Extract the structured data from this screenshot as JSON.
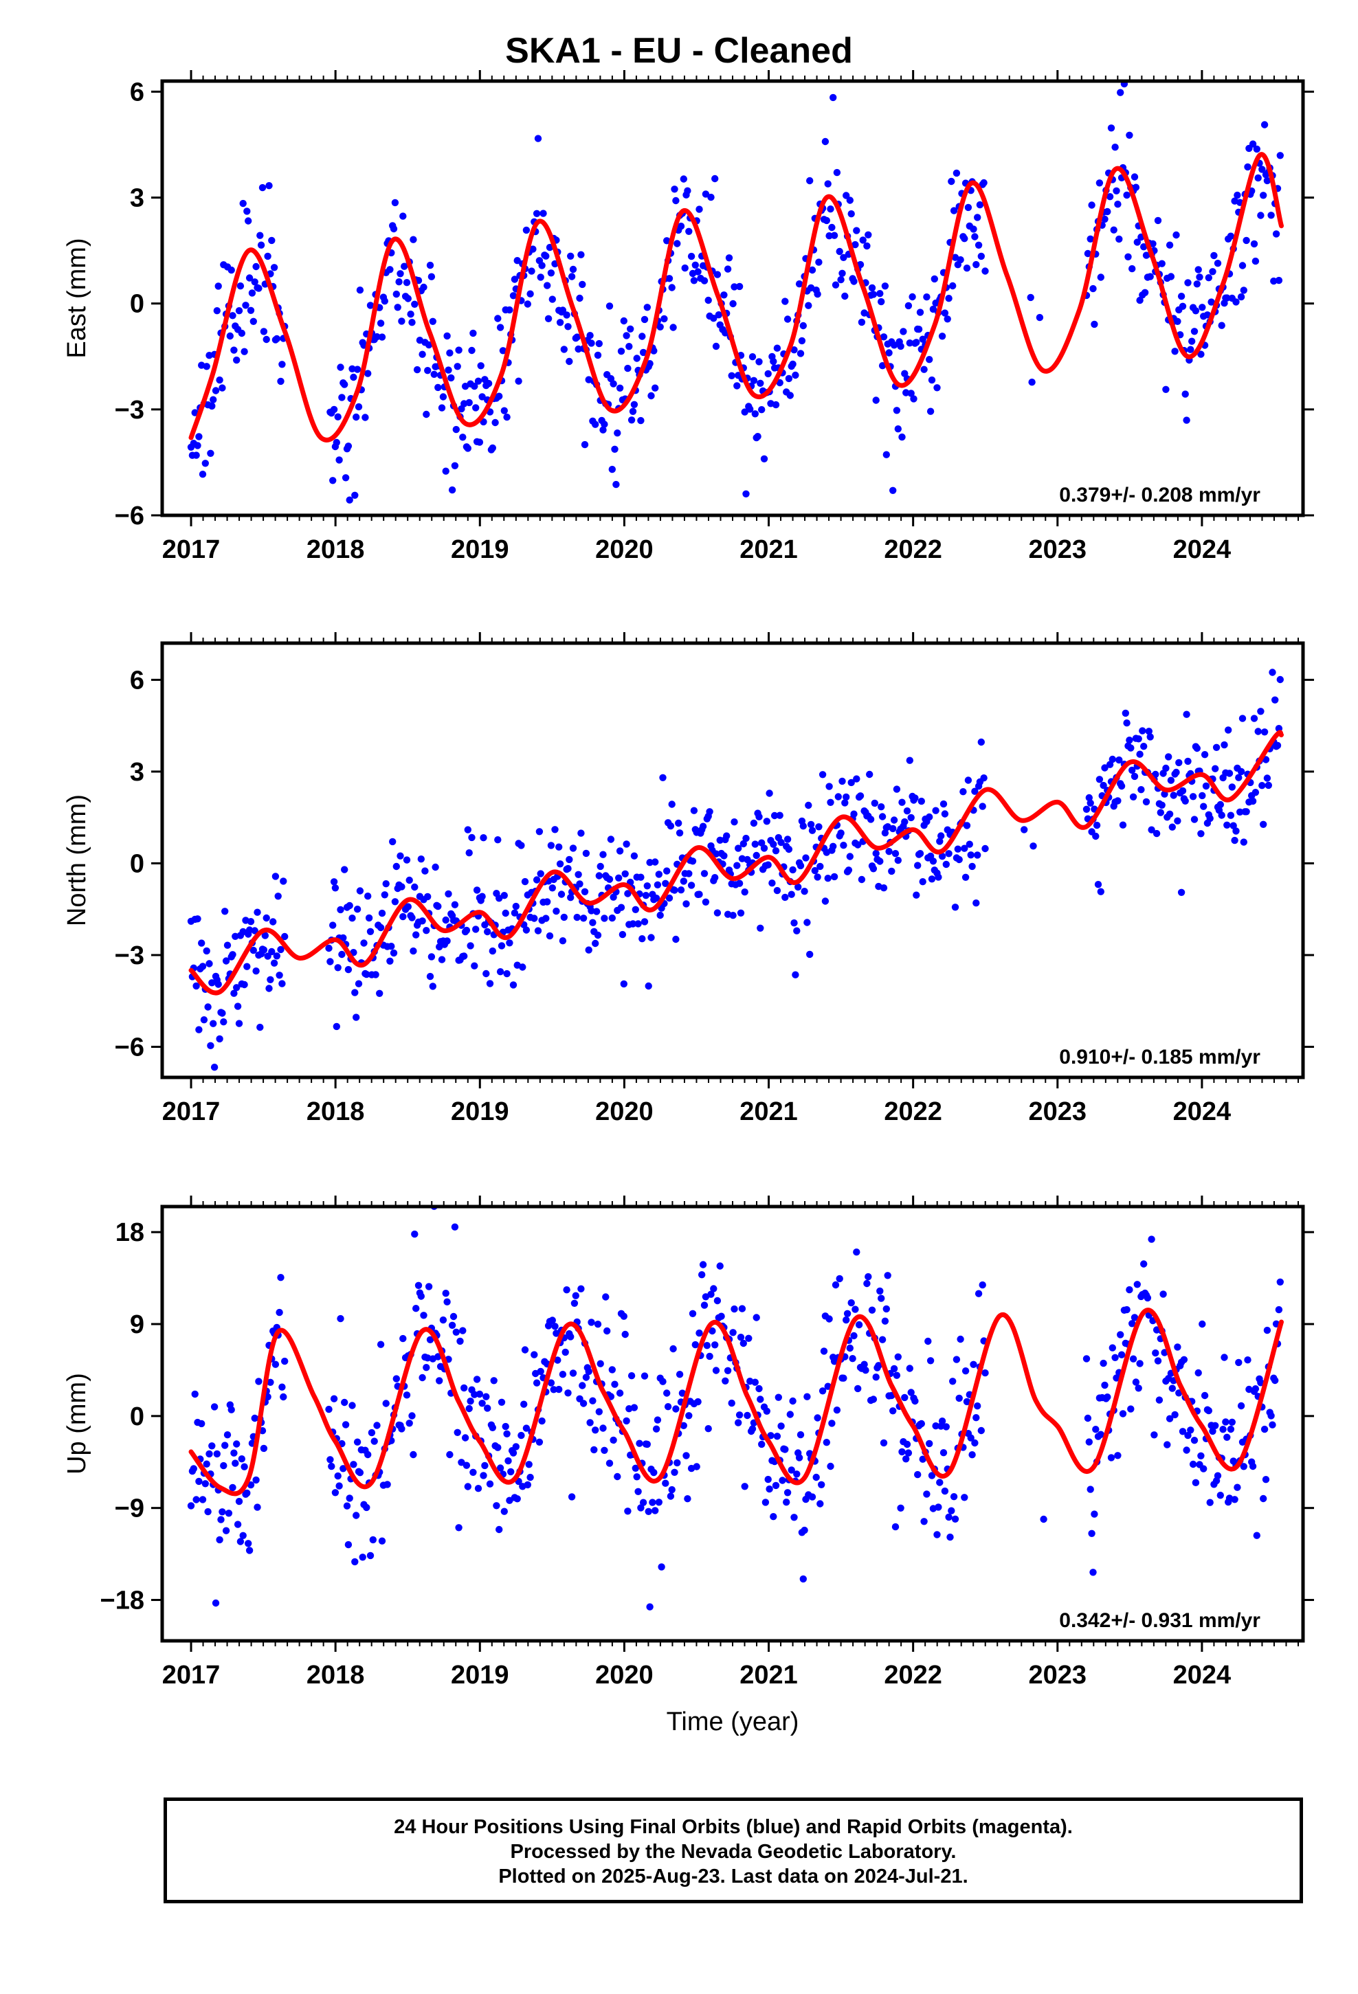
{
  "title": "SKA1  - EU - Cleaned",
  "caption": {
    "line1": "24 Hour Positions Using Final Orbits (blue) and Rapid Orbits (magenta).",
    "line2": "Processed by the Nevada Geodetic Laboratory.",
    "line3": "Plotted on 2025-Aug-23. Last data on 2024-Jul-21."
  },
  "colors": {
    "points": "#0000ff",
    "model": "#ff0000",
    "frame": "#000000"
  },
  "chart_data": [
    {
      "type": "scatter",
      "ylabel": "East (mm)",
      "rate_label": "0.379+/- 0.208 mm/yr",
      "xlim": [
        2016.8,
        2024.7
      ],
      "ylim": [
        -6.0,
        6.3
      ],
      "x_ticks": [
        2017,
        2018,
        2019,
        2020,
        2021,
        2022,
        2023,
        2024
      ],
      "y_ticks": [
        6,
        3,
        0,
        -3,
        -6
      ],
      "y_tick_labels": [
        "6",
        "3",
        "0",
        "−3",
        "−6"
      ],
      "model": {
        "x": [
          2017.0,
          2017.15,
          2017.4,
          2017.65,
          2017.9,
          2018.15,
          2018.4,
          2018.65,
          2018.9,
          2019.15,
          2019.4,
          2019.65,
          2019.9,
          2020.15,
          2020.4,
          2020.65,
          2020.9,
          2021.15,
          2021.4,
          2021.65,
          2021.9,
          2022.15,
          2022.4,
          2022.65,
          2022.9,
          2023.15,
          2023.4,
          2023.65,
          2023.9,
          2024.15,
          2024.4,
          2024.55
        ],
        "y": [
          -3.8,
          -2.0,
          1.5,
          -0.8,
          -3.8,
          -2.5,
          1.8,
          -0.8,
          -3.4,
          -2.0,
          2.3,
          -0.2,
          -3.0,
          -1.6,
          2.6,
          0.2,
          -2.6,
          -1.2,
          3.0,
          0.5,
          -2.3,
          -0.6,
          3.4,
          0.8,
          -1.9,
          -0.2,
          3.8,
          1.4,
          -1.5,
          0.6,
          4.2,
          2.2
        ]
      },
      "scatter": {
        "seed": 11,
        "dt": 0.009,
        "noise": 1.05,
        "gaps": [
          [
            2017.65,
            2017.95
          ],
          [
            2022.5,
            2022.75
          ],
          [
            2022.95,
            2023.2
          ]
        ],
        "sparse": [
          [
            2022.75,
            2022.95
          ]
        ]
      }
    },
    {
      "type": "scatter",
      "ylabel": "North (mm)",
      "rate_label": "0.910+/- 0.185 mm/yr",
      "xlim": [
        2016.8,
        2024.7
      ],
      "ylim": [
        -7.0,
        7.2
      ],
      "x_ticks": [
        2017,
        2018,
        2019,
        2020,
        2021,
        2022,
        2023,
        2024
      ],
      "y_ticks": [
        6,
        3,
        0,
        -3,
        -6
      ],
      "y_tick_labels": [
        "6",
        "3",
        "0",
        "−3",
        "−6"
      ],
      "model": {
        "x": [
          2017.0,
          2017.2,
          2017.5,
          2017.75,
          2018.0,
          2018.2,
          2018.5,
          2018.75,
          2019.0,
          2019.2,
          2019.5,
          2019.75,
          2020.0,
          2020.2,
          2020.5,
          2020.75,
          2021.0,
          2021.2,
          2021.5,
          2021.75,
          2022.0,
          2022.2,
          2022.5,
          2022.75,
          2023.0,
          2023.2,
          2023.5,
          2023.75,
          2024.0,
          2024.2,
          2024.5,
          2024.55
        ],
        "y": [
          -3.5,
          -4.2,
          -2.2,
          -3.1,
          -2.5,
          -3.3,
          -1.2,
          -2.2,
          -1.6,
          -2.4,
          -0.3,
          -1.3,
          -0.7,
          -1.5,
          0.5,
          -0.5,
          0.2,
          -0.6,
          1.5,
          0.5,
          1.1,
          0.4,
          2.4,
          1.4,
          2.0,
          1.2,
          3.3,
          2.4,
          2.9,
          2.1,
          4.1,
          4.2
        ]
      },
      "scatter": {
        "seed": 29,
        "dt": 0.009,
        "noise": 1.05,
        "gaps": [
          [
            2017.65,
            2017.95
          ],
          [
            2022.5,
            2022.75
          ],
          [
            2022.95,
            2023.2
          ]
        ],
        "sparse": [
          [
            2022.75,
            2022.95
          ]
        ]
      }
    },
    {
      "type": "scatter",
      "ylabel": "Up (mm)",
      "rate_label": "0.342+/- 0.931 mm/yr",
      "xlim": [
        2016.8,
        2024.7
      ],
      "ylim": [
        -22.0,
        20.5
      ],
      "x_ticks": [
        2017,
        2018,
        2019,
        2020,
        2021,
        2022,
        2023,
        2024
      ],
      "y_ticks": [
        18,
        9,
        0,
        -9,
        -18
      ],
      "y_tick_labels": [
        "18",
        "9",
        "0",
        "−9",
        "−18"
      ],
      "xlabel": "Time (year)",
      "model": {
        "x": [
          2017.0,
          2017.2,
          2017.4,
          2017.6,
          2017.85,
          2018.0,
          2018.25,
          2018.6,
          2018.85,
          2019.0,
          2019.25,
          2019.6,
          2019.85,
          2020.0,
          2020.25,
          2020.6,
          2020.85,
          2021.0,
          2021.25,
          2021.6,
          2021.85,
          2022.0,
          2022.25,
          2022.6,
          2022.85,
          2023.0,
          2023.25,
          2023.6,
          2023.85,
          2024.0,
          2024.25,
          2024.55
        ],
        "y": [
          -3.5,
          -7.0,
          -6.0,
          8.2,
          2.0,
          -2.5,
          -6.5,
          8.3,
          1.5,
          -2.5,
          -6.0,
          8.8,
          2.5,
          -1.5,
          -6.0,
          9.0,
          2.0,
          -2.5,
          -6.0,
          9.5,
          3.0,
          -1.0,
          -5.5,
          9.8,
          1.5,
          -1.0,
          -5.0,
          10.2,
          3.0,
          -1.0,
          -4.8,
          9.2
        ]
      },
      "scatter": {
        "seed": 47,
        "dt": 0.009,
        "noise": 4.4,
        "gaps": [
          [
            2017.65,
            2017.95
          ],
          [
            2022.5,
            2022.75
          ],
          [
            2022.95,
            2023.2
          ]
        ],
        "sparse": [
          [
            2022.75,
            2022.95
          ]
        ]
      }
    }
  ]
}
